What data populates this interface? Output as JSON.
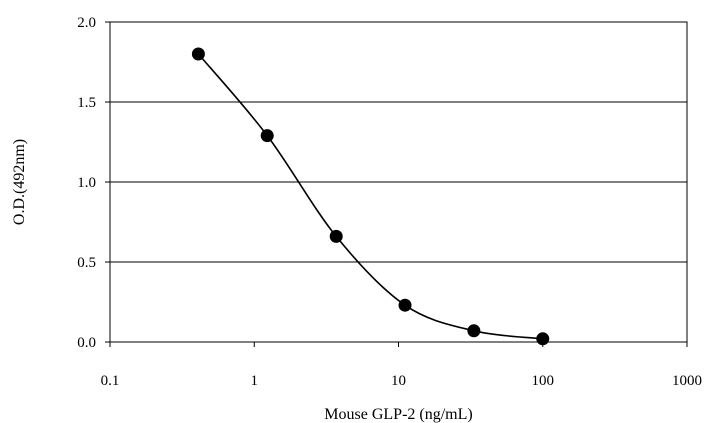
{
  "chart_data": {
    "type": "line",
    "title": "",
    "xlabel": "Mouse GLP-2 (ng/mL)",
    "ylabel": "O.D.(492nm)",
    "x_scale": "log",
    "xlim": [
      0.1,
      1000
    ],
    "ylim": [
      0,
      2.0
    ],
    "x_ticks": [
      "0.1",
      "1",
      "10",
      "100",
      "1000"
    ],
    "y_ticks": [
      "0.0",
      "0.5",
      "1.0",
      "1.5",
      "2.0"
    ],
    "grid": "horizontal",
    "legend": "none",
    "series": [
      {
        "x": [
          0.41,
          1.23,
          3.7,
          11.1,
          33.3,
          100
        ],
        "y": [
          1.8,
          1.29,
          0.66,
          0.23,
          0.07,
          0.02
        ],
        "marker": "filled-circle",
        "color": "#000000",
        "smooth": true
      }
    ]
  }
}
